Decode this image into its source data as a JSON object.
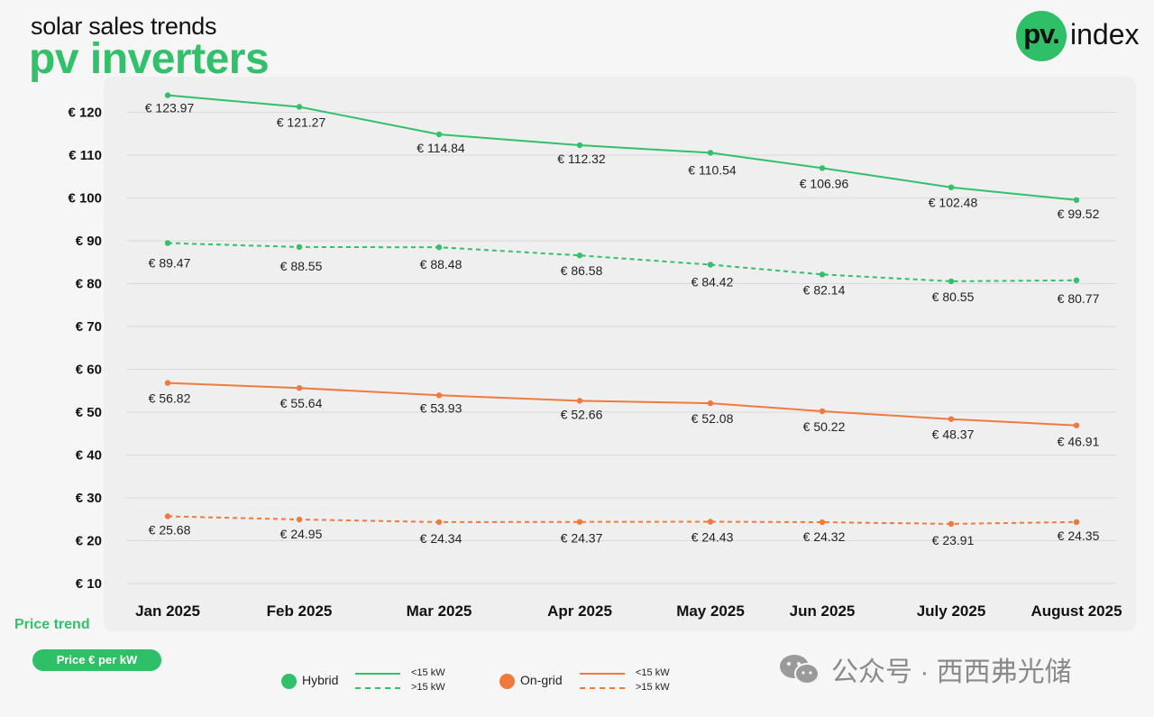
{
  "header": {
    "subtitle": "solar sales trends",
    "title": "pv inverters"
  },
  "logo": {
    "mark": "pv.",
    "text": "index"
  },
  "chart_data": {
    "type": "line",
    "title": "pv inverters",
    "subtitle": "solar sales trends",
    "categories": [
      "Jan 2025",
      "Feb 2025",
      "Mar 2025",
      "Apr 2025",
      "May 2025",
      "Jun 2025",
      "July 2025",
      "August 2025"
    ],
    "yticks": [
      10,
      20,
      30,
      40,
      50,
      60,
      70,
      80,
      90,
      100,
      110,
      120
    ],
    "ytick_prefix": "€ ",
    "ylim": [
      10,
      120
    ],
    "label_prefix": "€ ",
    "grid": true,
    "series": [
      {
        "name": "Hybrid <15 kW",
        "group": "Hybrid",
        "style": "solid",
        "color": "#33c06a",
        "values": [
          123.97,
          121.27,
          114.84,
          112.32,
          110.54,
          106.96,
          102.48,
          99.52
        ],
        "labels": [
          "123.97",
          "121.27",
          "114.84",
          "112.32",
          "110.54",
          "106.96",
          "102.48",
          "99.52"
        ]
      },
      {
        "name": "Hybrid >15 kW",
        "group": "Hybrid",
        "style": "dashed",
        "color": "#33c06a",
        "values": [
          89.47,
          88.55,
          88.48,
          86.58,
          84.42,
          82.14,
          80.55,
          80.77
        ],
        "labels": [
          "89.47",
          "88.55",
          "88.48",
          "86.58",
          "84.42",
          "82.14",
          "80.55",
          "80.77"
        ]
      },
      {
        "name": "On-grid <15 kW",
        "group": "On-grid",
        "style": "solid",
        "color": "#f07a3e",
        "values": [
          56.82,
          55.64,
          53.93,
          52.66,
          52.08,
          50.22,
          48.37,
          46.91
        ],
        "labels": [
          "56.82",
          "55.64",
          "53.93",
          "52.66",
          "52.08",
          "50.22",
          "48.37",
          "46.91"
        ]
      },
      {
        "name": "On-grid >15 kW",
        "group": "On-grid",
        "style": "dashed",
        "color": "#f07a3e",
        "values": [
          25.68,
          24.95,
          24.34,
          24.37,
          24.43,
          24.32,
          23.91,
          24.35
        ],
        "labels": [
          "25.68",
          "24.95",
          "24.34",
          "24.37",
          "24.43",
          "24.32",
          "23.91",
          "24.35"
        ]
      }
    ]
  },
  "footer": {
    "price_trend": "Price trend",
    "price_unit": "Price € per kW"
  },
  "legend": {
    "hybrid": {
      "label": "Hybrid",
      "color": "#33c06a",
      "lt15": "<15 kW",
      "gt15": ">15 kW"
    },
    "ongrid": {
      "label": "On-grid",
      "color": "#f07a3e",
      "lt15": "<15 kW",
      "gt15": ">15 kW"
    }
  },
  "watermark": {
    "text": "公众号 · 西西弗光储",
    "icon": "wechat-icon"
  }
}
